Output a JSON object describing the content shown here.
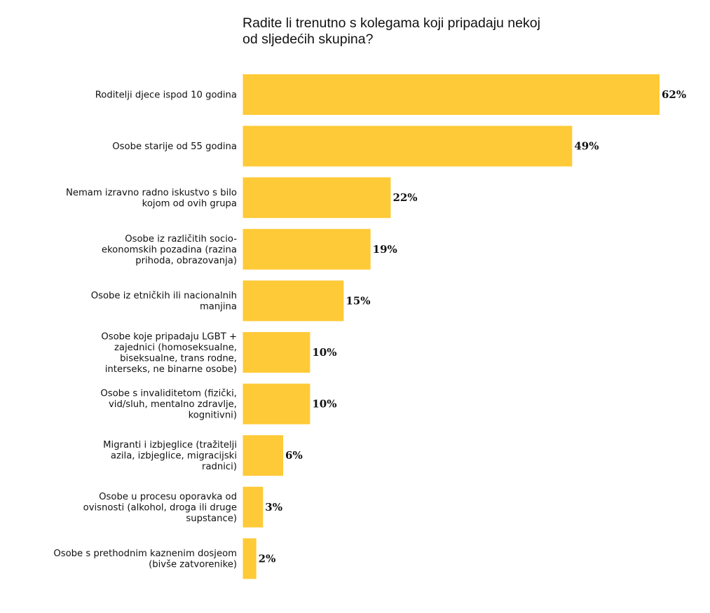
{
  "chart_data": {
    "type": "bar",
    "orientation": "horizontal",
    "title_lines": [
      "Radite li trenutno s kolegama koji pripadaju nekoj",
      "od sljedećih skupina?"
    ],
    "categories": [
      [
        "Roditelji djece ispod 10 godina"
      ],
      [
        "Osobe starije od 55 godina"
      ],
      [
        "Nemam izravno radno iskustvo s bilo",
        "kojom od ovih grupa"
      ],
      [
        "Osobe iz različitih socio-",
        "ekonomskih pozadina (razina",
        "prihoda, obrazovanja)"
      ],
      [
        "Osobe iz etničkih ili nacionalnih",
        "manjina"
      ],
      [
        "Osobe koje pripadaju LGBT +",
        "zajednici (homoseksualne,",
        "biseksualne, trans rodne,",
        "interseks, ne binarne osobe)"
      ],
      [
        "Osobe s invaliditetom (fizički,",
        "vid/sluh, mentalno zdravlje,",
        "kognitivni)"
      ],
      [
        "Migranti i izbjeglice (tražitelji",
        "azila, izbjeglice, migracijski",
        "radnici)"
      ],
      [
        "Osobe u procesu oporavka od",
        "ovisnosti (alkohol, droga ili druge",
        "supstance)"
      ],
      [
        "Osobe s prethodnim kaznenim dosjeom",
        "(bivše zatvorenike)"
      ]
    ],
    "values": [
      62,
      49,
      22,
      19,
      15,
      10,
      10,
      6,
      3,
      2
    ],
    "value_labels": [
      "62%",
      "49%",
      "22%",
      "19%",
      "15%",
      "10%",
      "10%",
      "6%",
      "3%",
      "2%"
    ],
    "unit": "%",
    "xlim": [
      0,
      62
    ],
    "bar_color": "#ffca38",
    "grid": false,
    "legend": "none"
  }
}
